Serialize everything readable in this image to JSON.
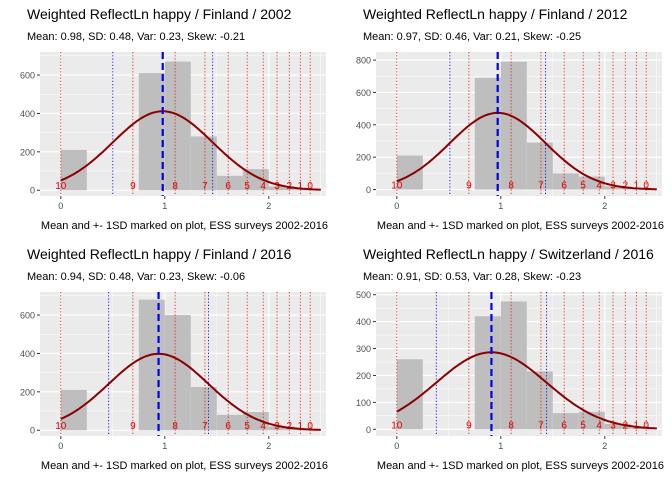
{
  "chart_data": [
    {
      "type": "bar",
      "title": "Weighted ReflectLn happy / Finland / 2002",
      "subtitle": "Mean: 0.98, SD: 0.48, Var: 0.23, Skew: -0.21",
      "caption": "Mean and +- 1SD marked on plot, ESS surveys 2002-2016",
      "bins": [
        0,
        0.25,
        0.5,
        0.75,
        1.0,
        1.25,
        1.5,
        1.75,
        2.0,
        2.25,
        2.5
      ],
      "counts": [
        210,
        0,
        0,
        610,
        670,
        280,
        75,
        110,
        20,
        5
      ],
      "mean": 0.98,
      "sd": 0.48,
      "xlim": [
        -0.2,
        2.55
      ],
      "ylim": [
        -30,
        720
      ],
      "xticks": [
        0,
        1,
        2
      ],
      "yticks": [
        0,
        200,
        400,
        600
      ],
      "value_labels": [
        {
          "x": 0,
          "text": "10"
        },
        {
          "x": 0.693,
          "text": "9"
        },
        {
          "x": 1.099,
          "text": "8"
        },
        {
          "x": 1.386,
          "text": "7"
        },
        {
          "x": 1.609,
          "text": "6"
        },
        {
          "x": 1.792,
          "text": "5"
        },
        {
          "x": 1.946,
          "text": "4"
        },
        {
          "x": 2.079,
          "text": "3"
        },
        {
          "x": 2.197,
          "text": "2"
        },
        {
          "x": 2.303,
          "text": "1"
        },
        {
          "x": 2.398,
          "text": "0"
        }
      ]
    },
    {
      "type": "bar",
      "title": "Weighted ReflectLn happy / Finland / 2012",
      "subtitle": "Mean: 0.97, SD: 0.46, Var: 0.21, Skew: -0.25",
      "caption": "Mean and +- 1SD marked on plot, ESS surveys 2002-2016",
      "bins": [
        0,
        0.25,
        0.5,
        0.75,
        1.0,
        1.25,
        1.5,
        1.75,
        2.0,
        2.25,
        2.5
      ],
      "counts": [
        210,
        0,
        0,
        690,
        790,
        290,
        100,
        80,
        20,
        5
      ],
      "mean": 0.97,
      "sd": 0.46,
      "xlim": [
        -0.2,
        2.55
      ],
      "ylim": [
        -40,
        850
      ],
      "xticks": [
        0,
        1,
        2
      ],
      "yticks": [
        0,
        200,
        400,
        600,
        800
      ],
      "value_labels": [
        {
          "x": 0,
          "text": "10"
        },
        {
          "x": 0.693,
          "text": "9"
        },
        {
          "x": 1.099,
          "text": "8"
        },
        {
          "x": 1.386,
          "text": "7"
        },
        {
          "x": 1.609,
          "text": "6"
        },
        {
          "x": 1.792,
          "text": "5"
        },
        {
          "x": 1.946,
          "text": "4"
        },
        {
          "x": 2.079,
          "text": "3"
        },
        {
          "x": 2.197,
          "text": "2"
        },
        {
          "x": 2.303,
          "text": "1"
        },
        {
          "x": 2.398,
          "text": "0"
        }
      ]
    },
    {
      "type": "bar",
      "title": "Weighted ReflectLn happy / Finland / 2016",
      "subtitle": "Mean: 0.94, SD: 0.48, Var: 0.23, Skew: -0.06",
      "caption": "Mean and +- 1SD marked on plot, ESS surveys 2002-2016",
      "bins": [
        0,
        0.25,
        0.5,
        0.75,
        1.0,
        1.25,
        1.5,
        1.75,
        2.0,
        2.25,
        2.5
      ],
      "counts": [
        210,
        0,
        0,
        680,
        600,
        225,
        80,
        95,
        20,
        5
      ],
      "mean": 0.94,
      "sd": 0.48,
      "xlim": [
        -0.2,
        2.55
      ],
      "ylim": [
        -30,
        720
      ],
      "xticks": [
        0,
        1,
        2
      ],
      "yticks": [
        0,
        200,
        400,
        600
      ],
      "value_labels": [
        {
          "x": 0,
          "text": "10"
        },
        {
          "x": 0.693,
          "text": "9"
        },
        {
          "x": 1.099,
          "text": "8"
        },
        {
          "x": 1.386,
          "text": "7"
        },
        {
          "x": 1.609,
          "text": "6"
        },
        {
          "x": 1.792,
          "text": "5"
        },
        {
          "x": 1.946,
          "text": "4"
        },
        {
          "x": 2.079,
          "text": "3"
        },
        {
          "x": 2.197,
          "text": "2"
        },
        {
          "x": 2.303,
          "text": "1"
        },
        {
          "x": 2.398,
          "text": "0"
        }
      ]
    },
    {
      "type": "bar",
      "title": "Weighted ReflectLn happy / Switzerland / 2016",
      "subtitle": "Mean: 0.91, SD: 0.53, Var: 0.28, Skew: -0.23",
      "caption": "Mean and +- 1SD marked on plot, ESS surveys 2002-2016",
      "bins": [
        0,
        0.25,
        0.5,
        0.75,
        1.0,
        1.25,
        1.5,
        1.75,
        2.0,
        2.25,
        2.5
      ],
      "counts": [
        260,
        0,
        0,
        420,
        475,
        215,
        60,
        65,
        20,
        5
      ],
      "mean": 0.91,
      "sd": 0.53,
      "xlim": [
        -0.2,
        2.55
      ],
      "ylim": [
        -25,
        510
      ],
      "xticks": [
        0,
        1,
        2
      ],
      "yticks": [
        0,
        100,
        200,
        300,
        400,
        500
      ],
      "value_labels": [
        {
          "x": 0,
          "text": "10"
        },
        {
          "x": 0.693,
          "text": "9"
        },
        {
          "x": 1.099,
          "text": "8"
        },
        {
          "x": 1.386,
          "text": "7"
        },
        {
          "x": 1.609,
          "text": "6"
        },
        {
          "x": 1.792,
          "text": "5"
        },
        {
          "x": 1.946,
          "text": "4"
        },
        {
          "x": 2.079,
          "text": "3"
        },
        {
          "x": 2.197,
          "text": "2"
        },
        {
          "x": 2.303,
          "text": "1"
        },
        {
          "x": 2.398,
          "text": "0"
        }
      ]
    }
  ],
  "colors": {
    "panel_bg": "#ebebeb",
    "grid": "#ffffff",
    "bar": "#bebebe",
    "curve": "#8b0000",
    "mean_line": "#0000ee",
    "sd_line": "#0000ee",
    "value_line": "#dd0000",
    "value_label": "#dd0000",
    "tick_text": "#4d4d4d"
  }
}
